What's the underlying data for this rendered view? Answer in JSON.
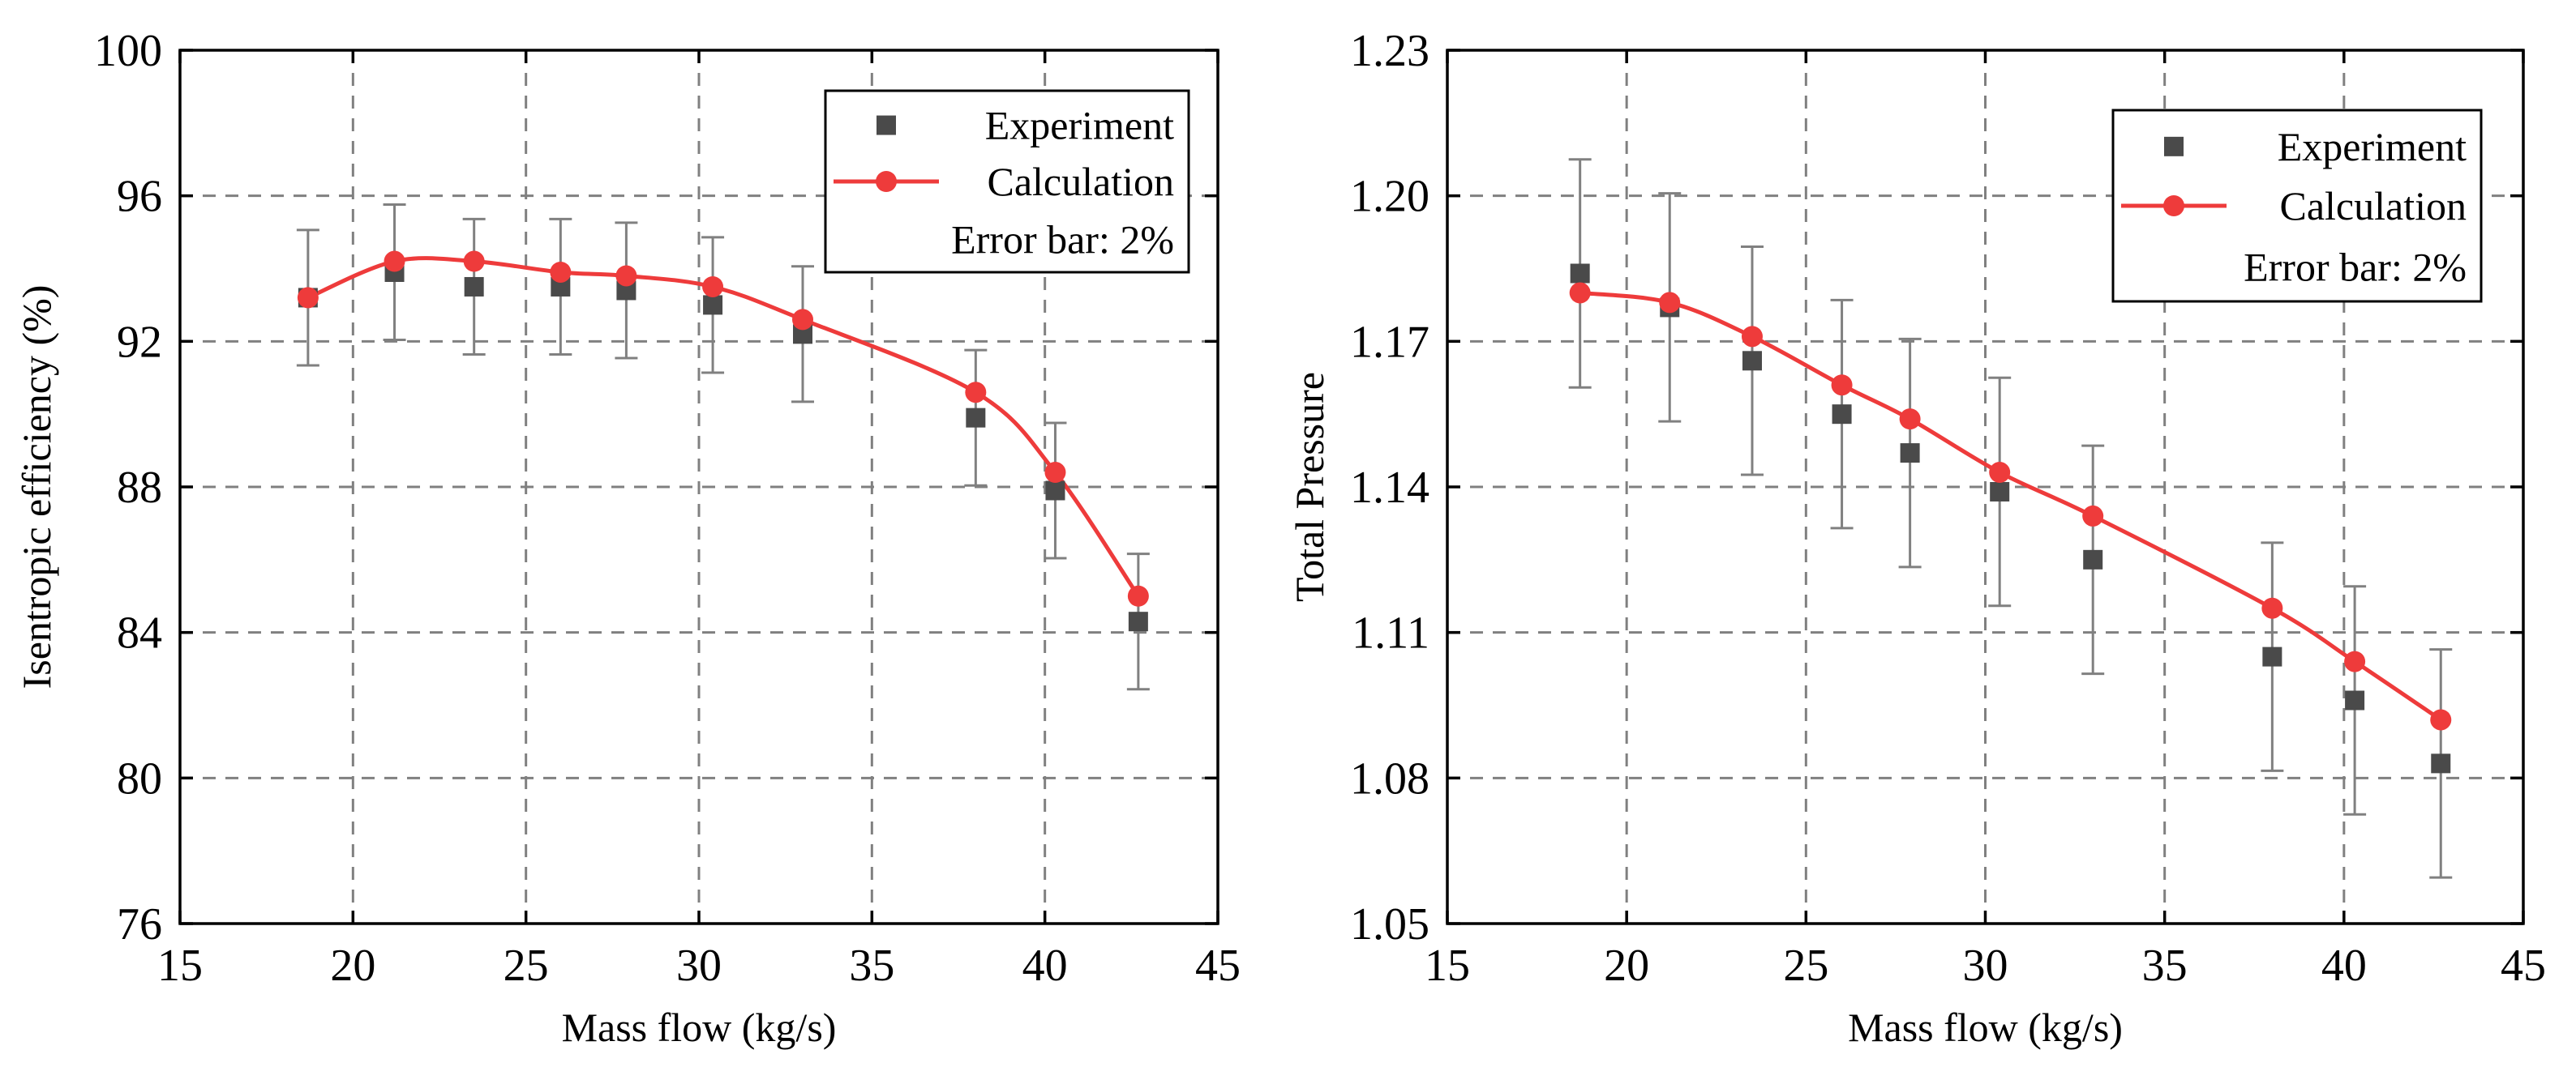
{
  "chart_data": [
    {
      "type": "line",
      "title": "",
      "xlabel": "Mass flow (kg/s)",
      "ylabel": "Isentropic efficiency (%)",
      "xlim": [
        15,
        45
      ],
      "ylim": [
        76,
        100
      ],
      "xticks": [
        15,
        20,
        25,
        30,
        35,
        40,
        45
      ],
      "yticks": [
        76,
        80,
        84,
        88,
        92,
        96,
        100
      ],
      "grid": true,
      "legend_position": "top-right",
      "legend": {
        "experiment": "Experiment",
        "calculation": "Calculation",
        "note": "Error bar: 2%"
      },
      "series": [
        {
          "name": "Experiment",
          "style": "square-markers-with-error-bars",
          "x": [
            18.7,
            21.2,
            23.5,
            26.0,
            27.9,
            30.4,
            33.0,
            38.0,
            40.3,
            42.7
          ],
          "values": [
            93.2,
            93.9,
            93.5,
            93.5,
            93.4,
            93.0,
            92.2,
            89.9,
            87.9,
            84.3
          ],
          "error": 1.86
        },
        {
          "name": "Calculation",
          "style": "line-with-circle-markers",
          "x": [
            18.7,
            21.2,
            23.5,
            26.0,
            27.9,
            30.4,
            33.0,
            38.0,
            40.3,
            42.7
          ],
          "values": [
            93.2,
            94.2,
            94.2,
            93.9,
            93.8,
            93.5,
            92.6,
            90.6,
            88.4,
            85.0
          ]
        }
      ]
    },
    {
      "type": "line",
      "title": "",
      "xlabel": "Mass flow (kg/s)",
      "ylabel": "Total Pressure",
      "xlim": [
        15,
        45
      ],
      "ylim": [
        1.05,
        1.23
      ],
      "xticks": [
        15,
        20,
        25,
        30,
        35,
        40,
        45
      ],
      "yticks": [
        1.05,
        1.08,
        1.11,
        1.14,
        1.17,
        1.2,
        1.23
      ],
      "ytick_labels": [
        "1.05",
        "1.08",
        "1.11",
        "1.14",
        "1.17",
        "1.20",
        "1.23"
      ],
      "grid": true,
      "legend_position": "top-right",
      "legend": {
        "experiment": "Experiment",
        "calculation": "Calculation",
        "note": "Error bar: 2%"
      },
      "series": [
        {
          "name": "Experiment",
          "style": "square-markers-with-error-bars",
          "x": [
            18.7,
            21.2,
            23.5,
            26.0,
            27.9,
            30.4,
            33.0,
            38.0,
            40.3,
            42.7
          ],
          "values": [
            1.184,
            1.177,
            1.166,
            1.155,
            1.147,
            1.139,
            1.125,
            1.105,
            1.096,
            1.083
          ],
          "error": 0.0235
        },
        {
          "name": "Calculation",
          "style": "line-with-circle-markers",
          "x": [
            18.7,
            21.2,
            23.5,
            26.0,
            27.9,
            30.4,
            33.0,
            38.0,
            40.3,
            42.7
          ],
          "values": [
            1.18,
            1.178,
            1.171,
            1.161,
            1.154,
            1.143,
            1.134,
            1.115,
            1.104,
            1.092
          ]
        }
      ]
    }
  ]
}
